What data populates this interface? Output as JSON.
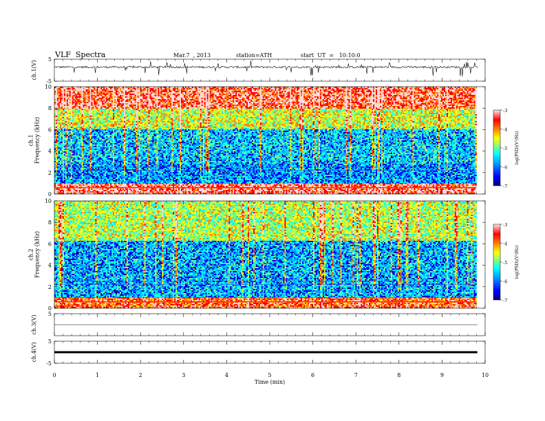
{
  "header": {
    "title": "VLF  Spectra",
    "date": "Mar.7  , 2013",
    "station": "station=ATH",
    "start": "start  UT  =   10:10:0"
  },
  "colors": {
    "jet": [
      "#000080",
      "#0000ff",
      "#00a0ff",
      "#00ffff",
      "#7fff7f",
      "#ffff00",
      "#ff8000",
      "#ff0000",
      "#ffd8d8"
    ]
  },
  "chart_data": [
    {
      "type": "line",
      "ylabel": "ch.1(V)",
      "ylim": [
        -5,
        5
      ],
      "yticks": [
        "5",
        "-5"
      ],
      "xlim": [
        0,
        10
      ],
      "description_of_signal": "noisy waveform around ~1.5 V with frequent spikes"
    },
    {
      "type": "heatmap",
      "ylabel": "ch.1\nFrequency  (kHz)",
      "ylabel_lines": [
        "ch.1",
        "Frequency  (kHz)"
      ],
      "ylim": [
        0,
        10
      ],
      "yticks": [
        "0",
        "2",
        "4",
        "6",
        "8",
        "10"
      ],
      "xlim": [
        0,
        9.8
      ],
      "colorbar": {
        "label": "log(PSD)(V²/Hz)",
        "range": [
          -7,
          -3
        ],
        "ticks": [
          "-3",
          "-4",
          "-5",
          "-6",
          "-7"
        ]
      },
      "bands_khz": [
        {
          "from": 0,
          "to": 1,
          "log_psd": -3.5
        },
        {
          "from": 1,
          "to": 2.8,
          "log_psd": -5.8
        },
        {
          "from": 2.8,
          "to": 6,
          "log_psd": -5.6
        },
        {
          "from": 6,
          "to": 8,
          "log_psd": -4.7
        },
        {
          "from": 8,
          "to": 10,
          "log_psd": -3.6
        }
      ]
    },
    {
      "type": "heatmap",
      "ylabel_lines": [
        "ch.2",
        "Frequency  (kHz)"
      ],
      "ylim": [
        0,
        10
      ],
      "yticks": [
        "0",
        "2",
        "4",
        "6",
        "8",
        "10"
      ],
      "xlim": [
        0,
        9.8
      ],
      "colorbar": {
        "label": "log(PSD)(V²/Hz)",
        "range": [
          -7,
          -3
        ],
        "ticks": [
          "-3",
          "-4",
          "-5",
          "-6",
          "-7"
        ]
      },
      "bands_khz": [
        {
          "from": 0,
          "to": 1,
          "log_psd": -3.8
        },
        {
          "from": 1,
          "to": 6.3,
          "log_psd": -5.7
        },
        {
          "from": 6.3,
          "to": 10,
          "log_psd": -4.8
        }
      ]
    },
    {
      "type": "line",
      "ylabel": "ch.3(V)",
      "ylim": [
        -5,
        5
      ],
      "yticks": [
        "5"
      ],
      "xlim": [
        0,
        10
      ],
      "value_v": 0
    },
    {
      "type": "line",
      "ylabel": "ch.4(V)",
      "ylim": [
        -5,
        5
      ],
      "yticks": [
        "5",
        "-5"
      ],
      "xlim": [
        0,
        10
      ],
      "value_v": 0
    }
  ],
  "xaxis": {
    "label": "Time  (min)",
    "ticks": [
      "0",
      "1",
      "2",
      "3",
      "4",
      "5",
      "6",
      "7",
      "8",
      "9",
      "10"
    ]
  }
}
